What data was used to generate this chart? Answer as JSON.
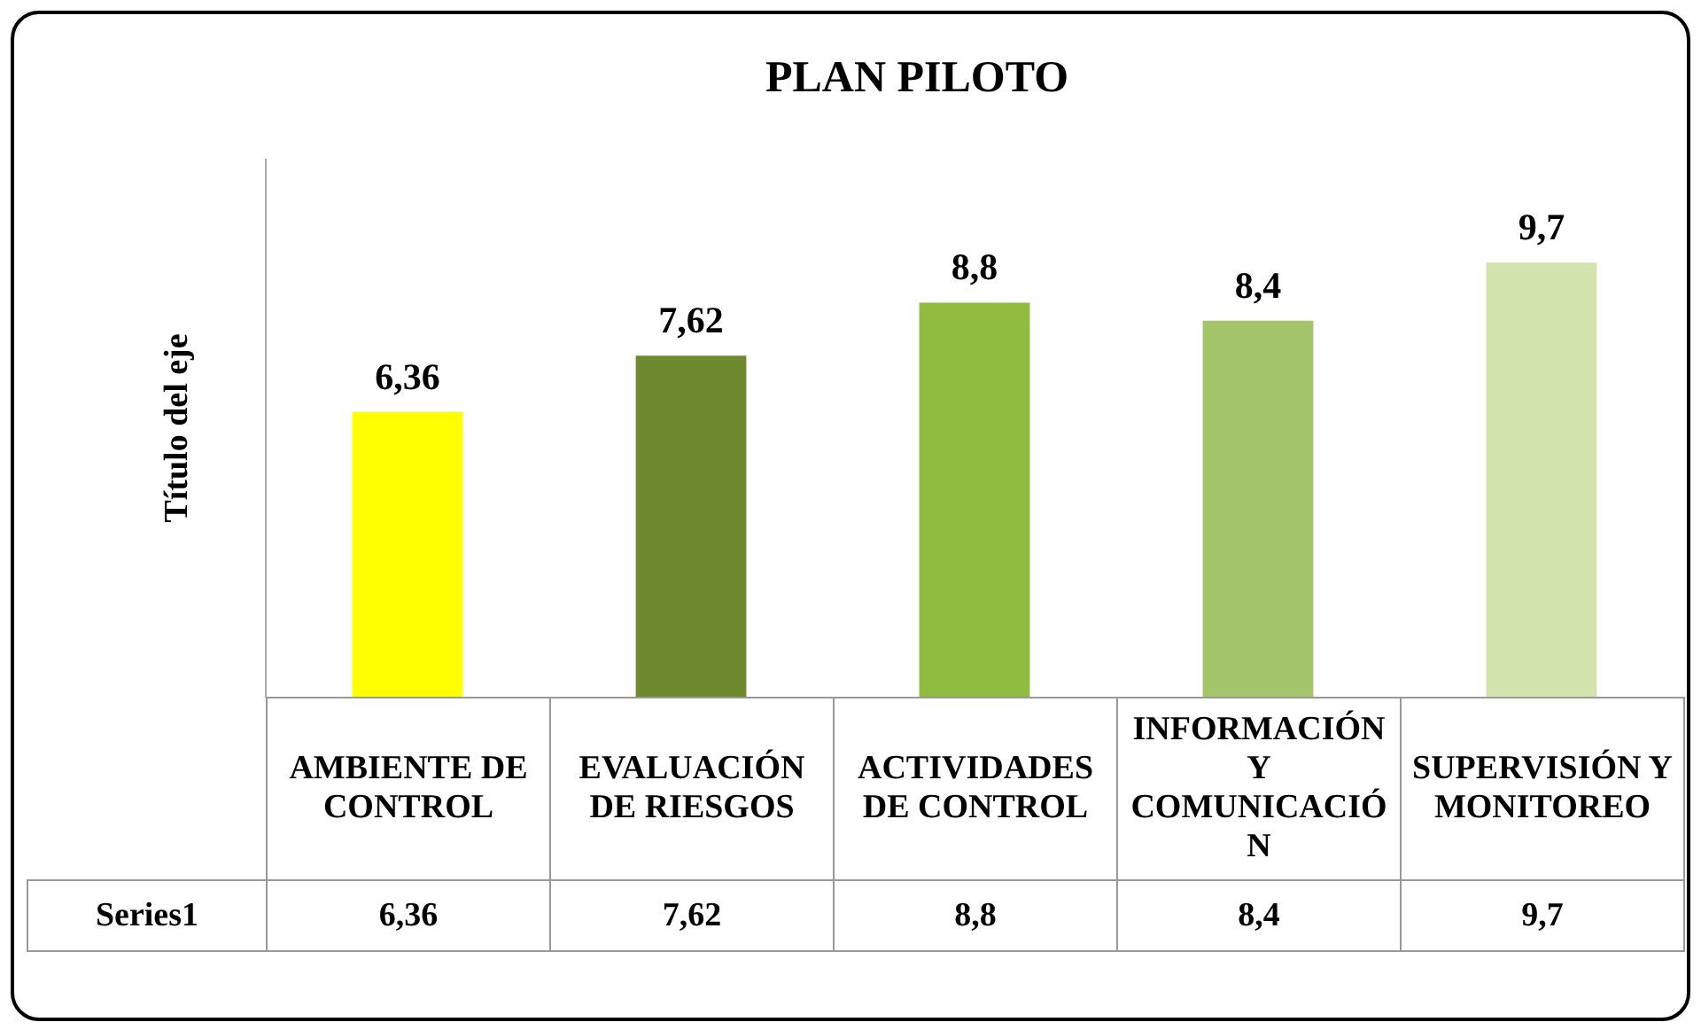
{
  "chart_data": {
    "type": "bar",
    "title": "PLAN PILOTO",
    "ylabel": "Título del eje",
    "categories": [
      "AMBIENTE DE CONTROL",
      "EVALUACIÓN DE RIESGOS",
      "ACTIVIDADES DE CONTROL",
      "INFORMACIÓN Y COMUNICACIÓN",
      "SUPERVISIÓN Y MONITOREO"
    ],
    "series": [
      {
        "name": "Series1",
        "colors": [
          "#ffff00",
          "#6f8a2e",
          "#8fbc3f",
          "#a4c46c",
          "#d2e3ad"
        ],
        "values": [
          6.36,
          7.62,
          8.8,
          8.4,
          9.7
        ],
        "value_labels": [
          "6,36",
          "7,62",
          "8,8",
          "8,4",
          "9,7"
        ]
      }
    ],
    "ylim": [
      0,
      12
    ],
    "tick_labels": false,
    "grid": false,
    "legend": false
  }
}
